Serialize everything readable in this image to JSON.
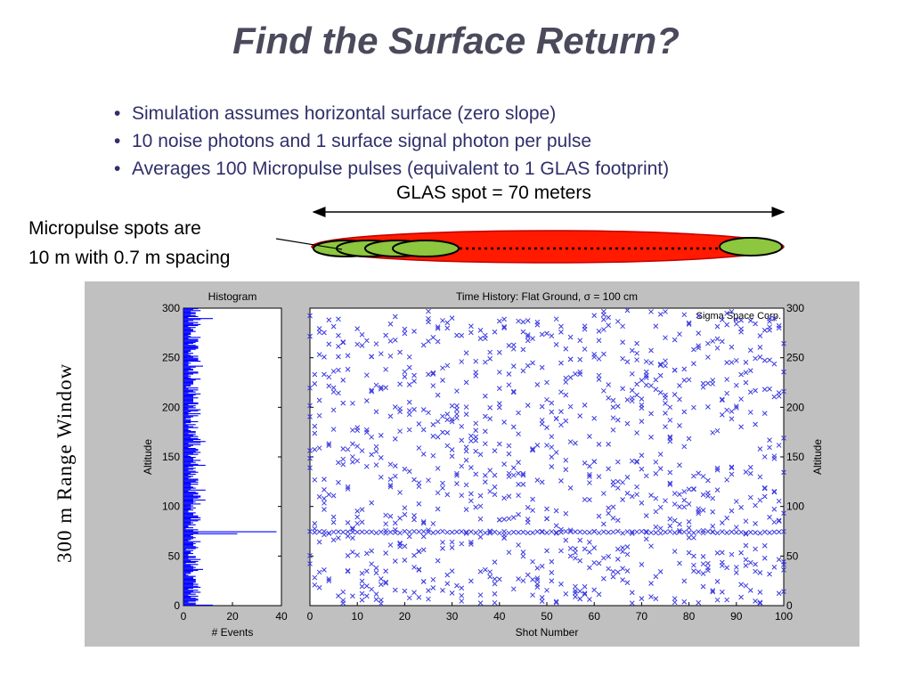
{
  "slide": {
    "title": "Find the Surface Return?",
    "bullets": [
      "Simulation assumes horizontal surface (zero slope)",
      "10 noise photons and 1 surface signal photon per pulse",
      "Averages 100 Micropulse pulses (equivalent to 1 GLAS footprint)"
    ],
    "glas_spot_label": "GLAS spot = 70 meters",
    "micropulse_label_line1": "Micropulse spots are",
    "micropulse_label_line2": "10 m with 0.7 m spacing",
    "range_window_label": "300 m Range Window",
    "bullet_glyph": "•"
  },
  "colors": {
    "ellipse_fill": "#ff1a00",
    "spot_fill": "#8dc63f",
    "marker": "#3a3ae0",
    "panel_bg": "#c0c0c0",
    "bar": "#0000ff"
  },
  "chart_data": [
    {
      "type": "bar",
      "orientation": "horizontal",
      "title": "Histogram",
      "xlabel": "# Events",
      "ylabel": "Altitude",
      "xlim": [
        0,
        40
      ],
      "ylim": [
        0,
        300
      ],
      "xticks": [
        "0",
        "20",
        "40"
      ],
      "yticks": [
        "0",
        "50",
        "100",
        "150",
        "200",
        "250",
        "300"
      ],
      "bin_width": 1,
      "description_values": {
        "noise_level_mean": 3.5,
        "surface_peak_altitude": 74,
        "surface_peak_count": 38,
        "secondary_peak_altitude": 72,
        "secondary_peak_count": 22,
        "low_altitude_spike": 12
      }
    },
    {
      "type": "scatter",
      "title": "Time History: Flat Ground, σ = 100 cm",
      "xlabel": "Shot Number",
      "ylabel": "Altitude",
      "ylabel_right": "Altitude",
      "annotation": "Sigma Space Corp.",
      "xlim": [
        0,
        100
      ],
      "ylim": [
        0,
        300
      ],
      "xticks": [
        "0",
        "10",
        "20",
        "30",
        "40",
        "50",
        "60",
        "70",
        "80",
        "90",
        "100"
      ],
      "yticks": [
        "0",
        "50",
        "100",
        "150",
        "200",
        "250",
        "300"
      ],
      "marker": "x",
      "series": [
        {
          "noise_photons_per_shot": 10,
          "signal_photons_per_shot": 1,
          "surface_altitude": 74,
          "surface_sigma": 1
        }
      ],
      "shots": 100
    }
  ]
}
